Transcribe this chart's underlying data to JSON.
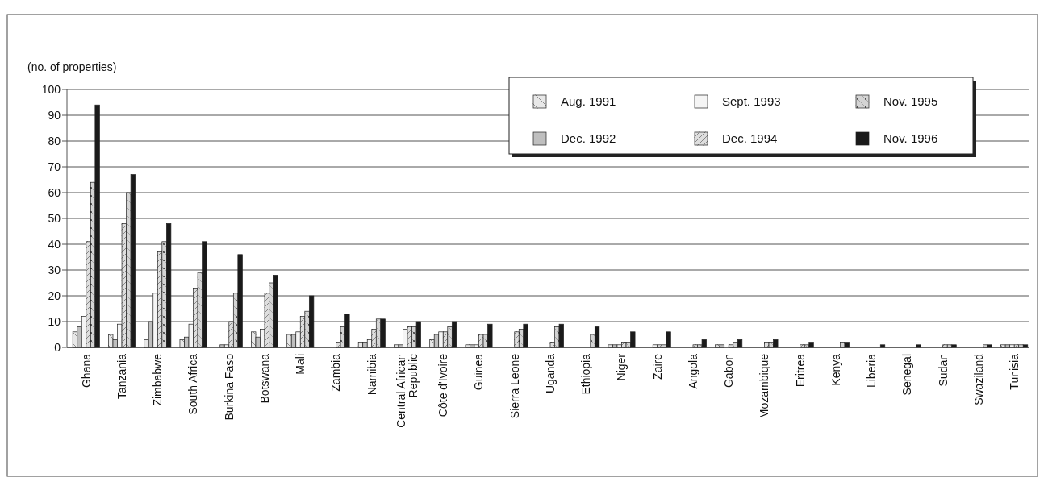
{
  "chart_data": {
    "type": "bar",
    "ylabel": "(no. of properties)",
    "categories": [
      "Ghana",
      "Tanzania",
      "Zimbabwe",
      "South Africa",
      "Burkina Faso",
      "Botswana",
      "Mali",
      "Zambia",
      "Namibia",
      "Central African Republic",
      "Côte d'Ivoire",
      "Guinea",
      "Sierra Leone",
      "Uganda",
      "Ethiopia",
      "Niger",
      "Zaire",
      "Angola",
      "Gabon",
      "Mozambique",
      "Eritrea",
      "Kenya",
      "Liberia",
      "Senegal",
      "Sudan",
      "Swaziland",
      "Tunisia"
    ],
    "series": [
      {
        "name": "Aug. 1991",
        "color": "#e8e8e8",
        "values": [
          6,
          5,
          3,
          3,
          0,
          6,
          5,
          0,
          2,
          1,
          3,
          1,
          0,
          0,
          0,
          1,
          0,
          0,
          1,
          0,
          0,
          0,
          0,
          0,
          0,
          0,
          1
        ]
      },
      {
        "name": "Dec. 1992",
        "color": "#bfbfbf",
        "values": [
          8,
          3,
          10,
          4,
          1,
          4,
          5,
          0,
          2,
          1,
          5,
          1,
          0,
          0,
          0,
          1,
          0,
          0,
          1,
          0,
          0,
          0,
          0,
          0,
          0,
          0,
          1
        ]
      },
      {
        "name": "Sept. 1993",
        "color": "#f5f5f5",
        "values": [
          12,
          9,
          21,
          9,
          1,
          7,
          6,
          0,
          3,
          7,
          6,
          1,
          0,
          0,
          0,
          1,
          1,
          0,
          0,
          0,
          0,
          0,
          0,
          0,
          0,
          0,
          1
        ]
      },
      {
        "name": "Dec. 1994",
        "color": "#dedede",
        "values": [
          41,
          48,
          37,
          23,
          10,
          21,
          12,
          2,
          7,
          8,
          6,
          5,
          6,
          2,
          0,
          2,
          1,
          1,
          1,
          2,
          1,
          0,
          0,
          0,
          1,
          0,
          1
        ]
      },
      {
        "name": "Nov. 1995",
        "color": "#d4d4d4",
        "values": [
          64,
          60,
          41,
          29,
          21,
          25,
          14,
          8,
          11,
          8,
          8,
          5,
          7,
          8,
          5,
          2,
          1,
          1,
          2,
          2,
          1,
          2,
          0,
          0,
          1,
          1,
          1
        ]
      },
      {
        "name": "Nov. 1996",
        "color": "#1a1a1a",
        "values": [
          94,
          67,
          48,
          41,
          36,
          28,
          20,
          13,
          11,
          10,
          10,
          9,
          9,
          9,
          8,
          6,
          6,
          3,
          3,
          3,
          2,
          2,
          1,
          1,
          1,
          1,
          1
        ]
      }
    ],
    "ylim": [
      0,
      100
    ],
    "yticks": [
      0,
      10,
      20,
      30,
      40,
      50,
      60,
      70,
      80,
      90,
      100
    ],
    "grid": "y",
    "legend": "top right"
  }
}
